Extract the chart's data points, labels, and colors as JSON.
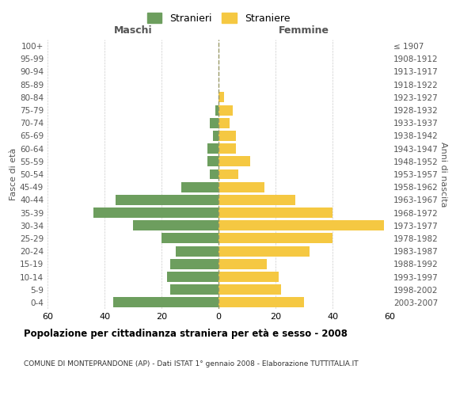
{
  "age_groups": [
    "0-4",
    "5-9",
    "10-14",
    "15-19",
    "20-24",
    "25-29",
    "30-34",
    "35-39",
    "40-44",
    "45-49",
    "50-54",
    "55-59",
    "60-64",
    "65-69",
    "70-74",
    "75-79",
    "80-84",
    "85-89",
    "90-94",
    "95-99",
    "100+"
  ],
  "birth_years": [
    "2003-2007",
    "1998-2002",
    "1993-1997",
    "1988-1992",
    "1983-1987",
    "1978-1982",
    "1973-1977",
    "1968-1972",
    "1963-1967",
    "1958-1962",
    "1953-1957",
    "1948-1952",
    "1943-1947",
    "1938-1942",
    "1933-1937",
    "1928-1932",
    "1923-1927",
    "1918-1922",
    "1913-1917",
    "1908-1912",
    "≤ 1907"
  ],
  "males": [
    37,
    17,
    18,
    17,
    15,
    20,
    30,
    44,
    36,
    13,
    3,
    4,
    4,
    2,
    3,
    1,
    0,
    0,
    0,
    0,
    0
  ],
  "females": [
    30,
    22,
    21,
    17,
    32,
    40,
    58,
    40,
    27,
    16,
    7,
    11,
    6,
    6,
    4,
    5,
    2,
    0,
    0,
    0,
    0
  ],
  "male_color": "#6d9e5e",
  "female_color": "#f5c842",
  "background_color": "#ffffff",
  "grid_color": "#cccccc",
  "title": "Popolazione per cittadinanza straniera per età e sesso - 2008",
  "subtitle": "COMUNE DI MONTEPRANDONE (AP) - Dati ISTAT 1° gennaio 2008 - Elaborazione TUTTITALIA.IT",
  "xlabel_left": "Maschi",
  "xlabel_right": "Femmine",
  "ylabel_left": "Fasce di età",
  "ylabel_right": "Anni di nascita",
  "xlim": 60,
  "legend_stranieri": "Stranieri",
  "legend_straniere": "Straniere"
}
